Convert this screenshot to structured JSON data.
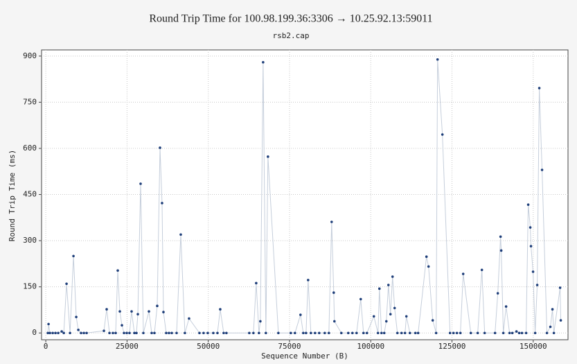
{
  "chart_data": {
    "type": "scatter-line",
    "title": "Round Trip Time for 100.98.199.36:3306 → 10.25.92.13:59011",
    "subtitle": "rsb2.cap",
    "x_label": "Sequence Number (B)",
    "y_label": "Round Trip Time (ms)",
    "xlim": [
      -1300,
      160700
    ],
    "ylim": [
      -22,
      920
    ],
    "xticks": [
      0,
      25000,
      50000,
      75000,
      100000,
      125000,
      150000
    ],
    "yticks": [
      0,
      150,
      300,
      450,
      600,
      750,
      900
    ],
    "grid": true,
    "line_color": "#c5cedb",
    "point_color": "#1f3f7a",
    "x": [
      640,
      850,
      1280,
      2130,
      2980,
      3830,
      4900,
      5540,
      6390,
      7460,
      8520,
      9370,
      10010,
      10860,
      11720,
      12570,
      17890,
      18740,
      19600,
      20660,
      21510,
      22150,
      22790,
      23430,
      24070,
      24920,
      25770,
      26410,
      27260,
      27900,
      28330,
      29180,
      30030,
      31740,
      32590,
      33440,
      34290,
      35150,
      35780,
      36210,
      37060,
      37910,
      38770,
      40260,
      41540,
      42810,
      44090,
      47290,
      48560,
      49840,
      51550,
      52830,
      53680,
      54740,
      55590,
      62620,
      63900,
      64750,
      65600,
      66030,
      66880,
      67730,
      68370,
      71570,
      75400,
      76680,
      78380,
      79240,
      80090,
      80730,
      81580,
      82860,
      84140,
      85840,
      87120,
      87970,
      88610,
      88820,
      90950,
      93080,
      94360,
      95640,
      96920,
      97770,
      98830,
      100960,
      102240,
      102670,
      103310,
      104160,
      104800,
      105440,
      106070,
      106710,
      107350,
      108200,
      109480,
      110550,
      110970,
      112040,
      113740,
      114590,
      117150,
      117790,
      119070,
      120130,
      120560,
      122050,
      124400,
      125460,
      126530,
      127590,
      128450,
      130790,
      132920,
      134200,
      135050,
      138250,
      139100,
      139950,
      140160,
      140800,
      141650,
      142720,
      143570,
      144850,
      145690,
      146540,
      147820,
      148460,
      149100,
      149310,
      149950,
      150590,
      151230,
      151870,
      152720,
      154220,
      155280,
      155920,
      156350,
      158270,
      158480
    ],
    "values": [
      0,
      29,
      0,
      0,
      0,
      0,
      5,
      0,
      160,
      0,
      250,
      52,
      10,
      0,
      0,
      0,
      7,
      77,
      0,
      0,
      0,
      203,
      70,
      25,
      0,
      0,
      0,
      70,
      0,
      0,
      61,
      485,
      0,
      70,
      0,
      0,
      88,
      602,
      422,
      68,
      0,
      0,
      0,
      0,
      320,
      0,
      47,
      0,
      0,
      0,
      0,
      0,
      77,
      0,
      0,
      0,
      0,
      162,
      0,
      38,
      880,
      0,
      573,
      0,
      0,
      0,
      59,
      0,
      0,
      172,
      0,
      0,
      0,
      0,
      0,
      361,
      131,
      38,
      0,
      0,
      0,
      0,
      110,
      0,
      0,
      54,
      0,
      144,
      0,
      0,
      38,
      156,
      61,
      183,
      81,
      0,
      0,
      0,
      54,
      0,
      0,
      0,
      248,
      216,
      41,
      0,
      889,
      645,
      0,
      0,
      0,
      0,
      192,
      0,
      0,
      205,
      0,
      0,
      129,
      313,
      268,
      0,
      86,
      0,
      0,
      5,
      0,
      0,
      0,
      417,
      343,
      282,
      199,
      0,
      156,
      796,
      530,
      0,
      20,
      77,
      0,
      147,
      41
    ]
  }
}
